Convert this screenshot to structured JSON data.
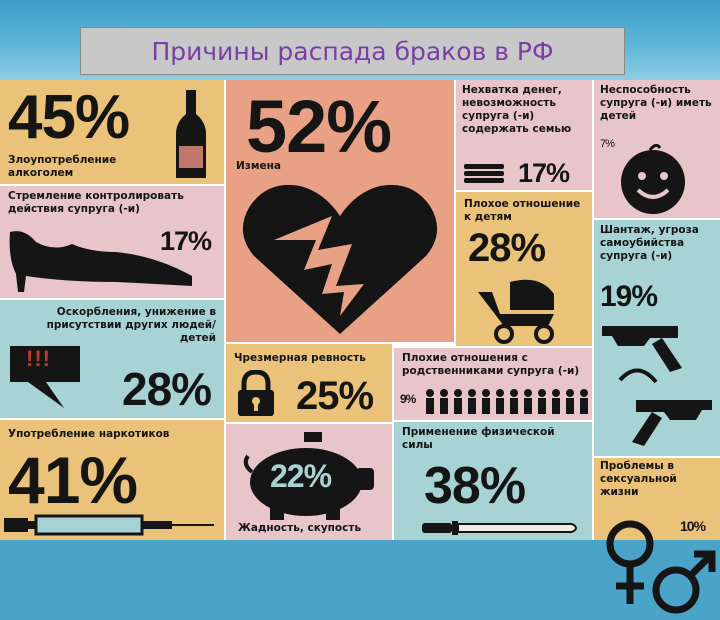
{
  "title": "Причины распада браков в РФ",
  "cells": {
    "alcohol": {
      "pct": "45%",
      "label": "Злоупотребление алкоголем"
    },
    "control": {
      "pct": "17%",
      "label": "Стремление контролировать действия супруга (-и)"
    },
    "insults": {
      "pct": "28%",
      "label": "Оскорбления, унижение в присутствии других людей/детей",
      "mark": "!!!"
    },
    "drugs": {
      "pct": "41%",
      "label": "Употребление наркотиков"
    },
    "cheating": {
      "pct": "52%",
      "label": "Измена"
    },
    "jealousy": {
      "pct": "25%",
      "label": "Чрезмерная ревность"
    },
    "greed": {
      "pct": "22%",
      "label": "Жадность, скупость"
    },
    "money": {
      "pct": "17%",
      "label": "Нехватка денег, невозможность супруга (-и) содержать семью"
    },
    "children": {
      "pct": "28%",
      "label": "Плохое отношение к детям"
    },
    "relatives": {
      "pct": "9%",
      "label": "Плохие отношения с родственниками супруга (-и)"
    },
    "violence": {
      "pct": "38%",
      "label": "Применение физической силы"
    },
    "infertile": {
      "pct": "7%",
      "label": "Неспособность супруга (-и) иметь детей"
    },
    "blackmail": {
      "pct": "19%",
      "label": "Шантаж, угроза самоубийства супруга (-и)"
    },
    "sexual": {
      "pct": "10%",
      "label": "Проблемы в сексуальной жизни"
    }
  },
  "colors": {
    "tan": "#ebc27a",
    "pink": "#e7c5c8",
    "teal": "#a8d3d5",
    "peach": "#e8a184",
    "ink": "#151515",
    "title": "#7a3fa6"
  }
}
